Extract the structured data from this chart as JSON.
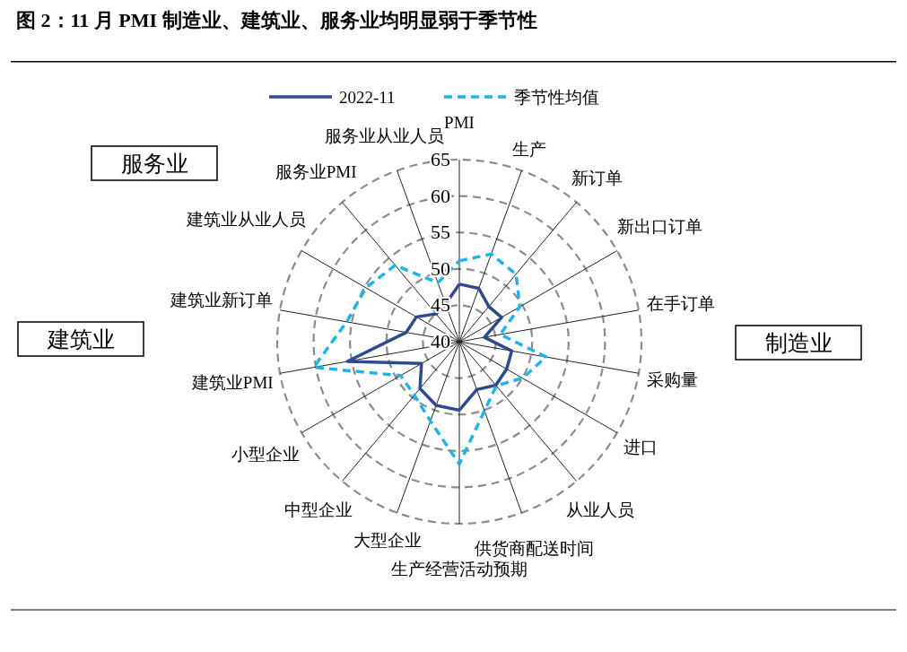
{
  "chart_data": {
    "type": "radar",
    "title": "图 2：11 月 PMI 制造业、建筑业、服务业均明显弱于季节性",
    "categories": [
      "PMI",
      "生产",
      "新订单",
      "新出口订单",
      "在手订单",
      "采购量",
      "进口",
      "从业人员",
      "供货商配送时间",
      "生产经营活动预期",
      "大型企业",
      "中型企业",
      "小型企业",
      "建筑业PMI",
      "建筑业新订单",
      "建筑业从业人员",
      "服务业PMI",
      "服务业从业人员"
    ],
    "series": [
      {
        "name": "2022-11",
        "color": "#2f4a8c",
        "line_style": "solid",
        "values": [
          47.9,
          47.8,
          46.3,
          46.7,
          43.5,
          47.3,
          47.5,
          47.8,
          47.0,
          49.4,
          49.3,
          48.4,
          46.0,
          55.6,
          47.4,
          46.8,
          45.0,
          45.5
        ]
      },
      {
        "name": "季节性均值",
        "color": "#1eb4ea",
        "line_style": "dashed",
        "values": [
          51.1,
          52.8,
          52.1,
          49.6,
          45.7,
          52.1,
          50.0,
          47.9,
          50.1,
          56.8,
          51.6,
          49.6,
          49.3,
          60.3,
          55.7,
          54.8,
          53.7,
          48.6
        ]
      }
    ],
    "ylim": [
      40,
      65
    ],
    "yticks": [
      40,
      45,
      50,
      55,
      60,
      65
    ],
    "grid": true,
    "legend": "top",
    "annotations": [
      "服务业",
      "建筑业",
      "制造业"
    ]
  }
}
